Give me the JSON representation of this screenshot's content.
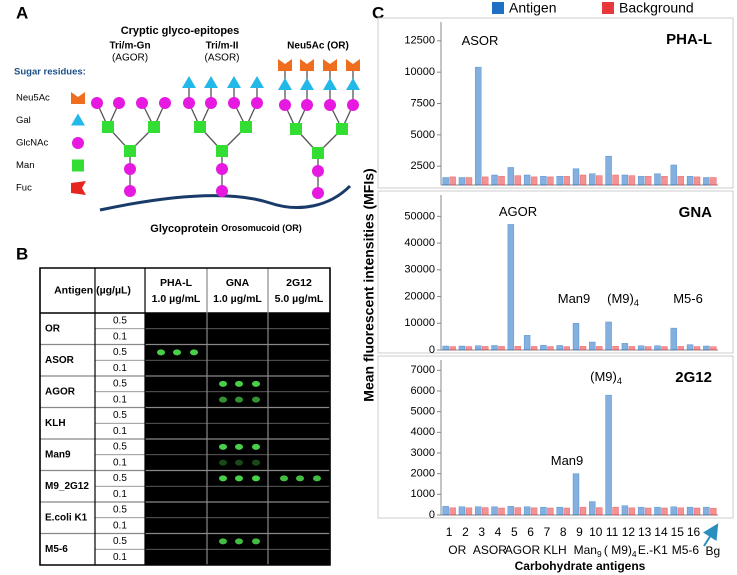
{
  "panel_a": {
    "label": "A",
    "heading": "Cryptic glyco-epitopes",
    "glycans": [
      {
        "name": "Tri/m-Gn",
        "abbr": "(AGOR)"
      },
      {
        "name": "Tri/m-II",
        "abbr": "(ASOR)"
      },
      {
        "name": "Neu5Ac (OR)"
      }
    ],
    "legend_title": "Sugar residues:",
    "residues": [
      "Neu5Ac",
      "Gal",
      "GlcNAc",
      "Man",
      "Fuc"
    ],
    "protein": "Glycoprotein",
    "protein_name": "Orosomucoid (OR)"
  },
  "panel_b": {
    "label": "B",
    "header": {
      "antigen": "Antigen (µg/µL)",
      "lectins": [
        {
          "name": "PHA-L",
          "conc": "1.0 µg/mL"
        },
        {
          "name": "GNA",
          "conc": "1.0 µg/mL"
        },
        {
          "name": "2G12",
          "conc": "5.0 µg/mL"
        }
      ]
    },
    "rows": [
      {
        "antigen": "OR",
        "conc": [
          "0.5",
          "0.1"
        ]
      },
      {
        "antigen": "ASOR",
        "conc": [
          "0.5",
          "0.1"
        ]
      },
      {
        "antigen": "AGOR",
        "conc": [
          "0.5",
          "0.1"
        ]
      },
      {
        "antigen": "KLH",
        "conc": [
          "0.5",
          "0.1"
        ]
      },
      {
        "antigen": "Man9",
        "conc": [
          "0.5",
          "0.1"
        ]
      },
      {
        "antigen": "M9_2G12",
        "conc": [
          "0.5",
          "0.1"
        ]
      },
      {
        "antigen": "E.coli K1",
        "conc": [
          "0.5",
          "0.1"
        ]
      },
      {
        "antigen": "M5-6",
        "conc": [
          "0.5",
          "0.1"
        ]
      }
    ]
  },
  "panel_c": {
    "label": "C",
    "y_label": "Mean fluorescent intensities (MFIs)",
    "x_label": "Carbohydrate antigens",
    "groups": [
      "OR",
      "ASOR",
      "AGOR",
      "KLH",
      {
        "text": "Man",
        "sub": "9"
      },
      {
        "text": "( M9)",
        "sub": "4"
      },
      "E.-K1",
      "M5-6"
    ]
  },
  "chart_data": [
    {
      "type": "bar",
      "title": "PHA-L",
      "ylim": [
        1000,
        14000
      ],
      "yticks": [
        2500,
        5000,
        7500,
        10000,
        12500
      ],
      "annotations": [
        {
          "text": "ASOR"
        }
      ],
      "series": [
        {
          "name": "Antigen",
          "color": "#1f6fc5",
          "values": [
            1600,
            1600,
            10400,
            1800,
            2400,
            1800,
            1700,
            1700,
            2300,
            1900,
            3300,
            1800,
            1700,
            1900,
            2600,
            1700,
            1600
          ]
        },
        {
          "name": "Background",
          "color": "#e8383d",
          "values": [
            1650,
            1600,
            1650,
            1700,
            1750,
            1650,
            1650,
            1700,
            1800,
            1750,
            1800,
            1750,
            1700,
            1700,
            1700,
            1650,
            1600
          ]
        }
      ]
    },
    {
      "type": "bar",
      "title": "GNA",
      "ylim": [
        0,
        58000
      ],
      "yticks": [
        0,
        10000,
        20000,
        30000,
        40000,
        50000
      ],
      "annotations": [
        {
          "text": "AGOR"
        },
        {
          "text": "Man9"
        },
        {
          "text": "(M9)",
          "sub": "4"
        },
        {
          "text": "M5-6"
        }
      ],
      "series": [
        {
          "color": "#1f6fc5",
          "values": [
            1500,
            1500,
            1600,
            1700,
            47000,
            5500,
            1800,
            1700,
            10000,
            3000,
            10500,
            2500,
            1600,
            1600,
            8200,
            2000,
            1500
          ]
        },
        {
          "color": "#e8383d",
          "values": [
            1300,
            1300,
            1350,
            1350,
            1400,
            1350,
            1300,
            1300,
            1400,
            1350,
            1400,
            1350,
            1300,
            1300,
            1350,
            1300,
            1250
          ]
        }
      ]
    },
    {
      "type": "bar",
      "title": "2G12",
      "categories": [
        "1",
        "2",
        "3",
        "4",
        "5",
        "6",
        "7",
        "8",
        "9",
        "10",
        "11",
        "12",
        "13",
        "14",
        "15",
        "16",
        "Bg"
      ],
      "ylim": [
        0,
        7500
      ],
      "yticks": [
        0,
        1000,
        2000,
        3000,
        4000,
        5000,
        6000,
        7000
      ],
      "annotations": [
        {
          "text": "(M9)",
          "sub": "4"
        },
        {
          "text": "Man9"
        }
      ],
      "series": [
        {
          "color": "#1f6fc5",
          "values": [
            420,
            400,
            400,
            400,
            420,
            400,
            380,
            380,
            2000,
            650,
            5800,
            450,
            380,
            380,
            400,
            380,
            380
          ]
        },
        {
          "color": "#e8383d",
          "values": [
            350,
            350,
            360,
            340,
            360,
            350,
            340,
            340,
            380,
            360,
            380,
            350,
            340,
            340,
            350,
            340,
            330
          ]
        }
      ]
    }
  ]
}
